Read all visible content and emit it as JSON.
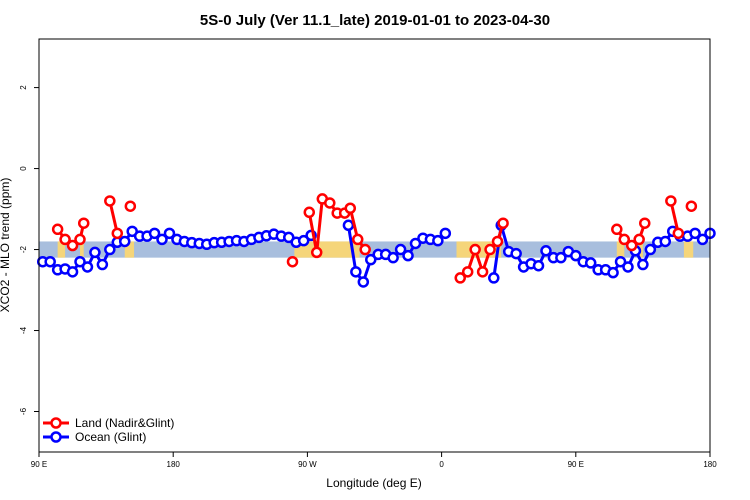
{
  "chart_data": {
    "type": "line",
    "title": "5S-0 July (Ver 11.1_late)   2019-01-01 to 2023-04-30",
    "xlabel": "Longitude (deg E)",
    "ylabel": "XCO2 - MLO trend (ppm)",
    "xlim": [
      90,
      450
    ],
    "ylim": [
      -7,
      3.2
    ],
    "x_ticks": [
      {
        "value": 90,
        "label": "90 E"
      },
      {
        "value": 162,
        "label": "180"
      },
      {
        "value": 234,
        "label": "90 W"
      },
      {
        "value": 306,
        "label": "0"
      },
      {
        "value": 378,
        "label": "90 E"
      },
      {
        "value": 450,
        "label": "180"
      }
    ],
    "y_ticks": [
      {
        "value": 2,
        "label": "2"
      },
      {
        "value": 0,
        "label": "0"
      },
      {
        "value": -2,
        "label": "-2"
      },
      {
        "value": -4,
        "label": "-4"
      },
      {
        "value": -6,
        "label": "-6"
      }
    ],
    "band": {
      "low": -2.2,
      "high": -1.8,
      "color": "#a8bedd",
      "land_color": "#f5d57a",
      "land_ranges": [
        [
          100,
          104
        ],
        [
          112,
          114
        ],
        [
          136,
          141
        ],
        [
          227,
          262
        ],
        [
          314,
          338
        ],
        [
          400,
          404
        ],
        [
          412,
          414
        ],
        [
          436,
          441
        ]
      ]
    },
    "series": [
      {
        "name": "Land (Nadir&Glint)",
        "color": "#ff0000",
        "segments": [
          [
            [
              100,
              -1.5
            ],
            [
              104,
              -1.75
            ],
            [
              108,
              -1.9
            ],
            [
              112,
              -1.75
            ],
            [
              114,
              -1.35
            ]
          ],
          [
            [
              128,
              -0.8
            ],
            [
              132,
              -1.6
            ]
          ],
          [
            [
              139,
              -0.93
            ]
          ],
          [
            [
              226,
              -2.3
            ]
          ],
          [
            [
              235,
              -1.08
            ],
            [
              239,
              -2.07
            ],
            [
              242,
              -0.75
            ],
            [
              246,
              -0.85
            ],
            [
              250,
              -1.1
            ],
            [
              254,
              -1.1
            ],
            [
              257,
              -0.98
            ],
            [
              261,
              -1.75
            ],
            [
              265,
              -2.0
            ]
          ],
          [
            [
              316,
              -2.7
            ],
            [
              320,
              -2.55
            ],
            [
              324,
              -2.0
            ],
            [
              328,
              -2.55
            ],
            [
              332,
              -2.0
            ],
            [
              336,
              -1.8
            ],
            [
              339,
              -1.35
            ]
          ],
          [
            [
              400,
              -1.5
            ],
            [
              404,
              -1.75
            ],
            [
              408,
              -1.9
            ],
            [
              412,
              -1.75
            ],
            [
              415,
              -1.35
            ]
          ],
          [
            [
              429,
              -0.8
            ],
            [
              433,
              -1.6
            ]
          ],
          [
            [
              440,
              -0.93
            ]
          ]
        ]
      },
      {
        "name": "Ocean (Glint)",
        "color": "#0000ff",
        "segments": [
          [
            [
              92,
              -2.3
            ],
            [
              96,
              -2.3
            ],
            [
              100,
              -2.5
            ],
            [
              104,
              -2.48
            ],
            [
              108,
              -2.55
            ],
            [
              112,
              -2.3
            ],
            [
              116,
              -2.43
            ],
            [
              120,
              -2.07
            ],
            [
              124,
              -2.37
            ],
            [
              128,
              -2.0
            ],
            [
              132,
              -1.82
            ],
            [
              136,
              -1.8
            ],
            [
              140,
              -1.55
            ],
            [
              144,
              -1.67
            ],
            [
              148,
              -1.67
            ],
            [
              152,
              -1.6
            ],
            [
              156,
              -1.75
            ],
            [
              160,
              -1.6
            ],
            [
              164,
              -1.75
            ],
            [
              168,
              -1.8
            ],
            [
              172,
              -1.83
            ],
            [
              176,
              -1.85
            ],
            [
              180,
              -1.87
            ],
            [
              184,
              -1.83
            ],
            [
              188,
              -1.82
            ],
            [
              192,
              -1.8
            ],
            [
              196,
              -1.78
            ],
            [
              200,
              -1.8
            ],
            [
              204,
              -1.75
            ],
            [
              208,
              -1.7
            ],
            [
              212,
              -1.66
            ],
            [
              216,
              -1.62
            ],
            [
              220,
              -1.67
            ],
            [
              224,
              -1.7
            ],
            [
              228,
              -1.82
            ],
            [
              232,
              -1.78
            ],
            [
              236,
              -1.65
            ]
          ],
          [
            [
              256,
              -1.4
            ],
            [
              260,
              -2.55
            ],
            [
              264,
              -2.8
            ],
            [
              268,
              -2.25
            ],
            [
              272,
              -2.12
            ],
            [
              276,
              -2.12
            ],
            [
              280,
              -2.2
            ],
            [
              284,
              -2.0
            ],
            [
              288,
              -2.15
            ],
            [
              292,
              -1.85
            ],
            [
              296,
              -1.72
            ],
            [
              300,
              -1.75
            ],
            [
              304,
              -1.78
            ],
            [
              308,
              -1.6
            ]
          ],
          [
            [
              334,
              -2.7
            ],
            [
              338,
              -1.4
            ],
            [
              342,
              -2.05
            ],
            [
              346,
              -2.1
            ],
            [
              350,
              -2.43
            ],
            [
              354,
              -2.35
            ],
            [
              358,
              -2.4
            ],
            [
              362,
              -2.03
            ],
            [
              366,
              -2.2
            ],
            [
              370,
              -2.2
            ],
            [
              374,
              -2.05
            ],
            [
              378,
              -2.15
            ],
            [
              382,
              -2.3
            ],
            [
              386,
              -2.33
            ],
            [
              390,
              -2.5
            ],
            [
              394,
              -2.5
            ],
            [
              398,
              -2.57
            ],
            [
              402,
              -2.3
            ],
            [
              406,
              -2.43
            ],
            [
              410,
              -2.03
            ],
            [
              414,
              -2.37
            ],
            [
              418,
              -2.0
            ],
            [
              422,
              -1.82
            ],
            [
              426,
              -1.8
            ],
            [
              430,
              -1.55
            ],
            [
              434,
              -1.67
            ],
            [
              438,
              -1.67
            ],
            [
              442,
              -1.6
            ],
            [
              446,
              -1.75
            ],
            [
              450,
              -1.6
            ]
          ]
        ]
      }
    ]
  }
}
